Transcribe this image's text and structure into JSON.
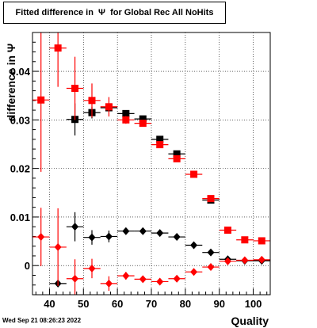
{
  "title": "Fitted difference in  Ψ  for Global Rec All NoHits",
  "footer": "Wed Sep 21 08:26:23 2022",
  "chart_data": {
    "type": "scatter",
    "title": "Fitted difference in  Ψ  for Global Rec All NoHits",
    "xlabel": "Quality",
    "ylabel": "difference in  Ψ",
    "xlim": [
      35,
      105
    ],
    "ylim": [
      -0.006,
      0.048
    ],
    "xticks": [
      40,
      50,
      60,
      70,
      80,
      90,
      100
    ],
    "yticks": [
      0,
      0.01,
      0.02,
      0.03,
      0.04
    ],
    "ytick_labels": [
      "0",
      "0.01",
      "0.02",
      "0.03",
      "0.04"
    ],
    "grid": true,
    "x_half_width": 2.5,
    "series": [
      {
        "color": "#000000",
        "marker": "square",
        "points": [
          {
            "x": 47.5,
            "y": 0.0301,
            "err": 0.0033
          },
          {
            "x": 52.5,
            "y": 0.0315,
            "err": 0.0012
          },
          {
            "x": 57.5,
            "y": 0.0325,
            "err": 0.0006
          },
          {
            "x": 62.5,
            "y": 0.0313,
            "err": 0.0004
          },
          {
            "x": 67.5,
            "y": 0.0302,
            "err": 0.0003
          },
          {
            "x": 72.5,
            "y": 0.026,
            "err": 0.0002
          },
          {
            "x": 77.5,
            "y": 0.023,
            "err": 0.0002
          },
          {
            "x": 87.5,
            "y": 0.0135,
            "err": 0.0002
          }
        ]
      },
      {
        "color": "#ff0000",
        "marker": "square",
        "points": [
          {
            "x": 37.5,
            "y": 0.0341,
            "err": 0.0148
          },
          {
            "x": 42.5,
            "y": 0.0448,
            "err": 0.008
          },
          {
            "x": 47.5,
            "y": 0.0365,
            "err": 0.0065
          },
          {
            "x": 52.5,
            "y": 0.034,
            "err": 0.0035
          },
          {
            "x": 57.5,
            "y": 0.0327,
            "err": 0.002
          },
          {
            "x": 62.5,
            "y": 0.03,
            "err": 0.0008
          },
          {
            "x": 67.5,
            "y": 0.0293,
            "err": 0.0005
          },
          {
            "x": 72.5,
            "y": 0.0249,
            "err": 0.0004
          },
          {
            "x": 77.5,
            "y": 0.022,
            "err": 0.0003
          },
          {
            "x": 82.5,
            "y": 0.0188,
            "err": 0.0003
          },
          {
            "x": 87.5,
            "y": 0.0138,
            "err": 0.0002
          },
          {
            "x": 92.5,
            "y": 0.0073,
            "err": 0.0002
          },
          {
            "x": 97.5,
            "y": 0.0053,
            "err": 0.0002
          },
          {
            "x": 102.5,
            "y": 0.0051,
            "err": 0.0002
          }
        ]
      },
      {
        "color": "#000000",
        "marker": "diamond",
        "points": [
          {
            "x": 42.5,
            "y": -0.0037,
            "err": 0.0007
          },
          {
            "x": 47.5,
            "y": 0.008,
            "err": 0.003
          },
          {
            "x": 52.5,
            "y": 0.0058,
            "err": 0.0015
          },
          {
            "x": 57.5,
            "y": 0.006,
            "err": 0.0012
          },
          {
            "x": 62.5,
            "y": 0.0071,
            "err": 0.0006
          },
          {
            "x": 67.5,
            "y": 0.0071,
            "err": 0.0004
          },
          {
            "x": 72.5,
            "y": 0.0067,
            "err": 0.0003
          },
          {
            "x": 77.5,
            "y": 0.0059,
            "err": 0.0003
          },
          {
            "x": 82.5,
            "y": 0.0042,
            "err": 0.0002
          },
          {
            "x": 87.5,
            "y": 0.0027,
            "err": 0.0002
          },
          {
            "x": 92.5,
            "y": 0.0013,
            "err": 0.0002
          },
          {
            "x": 97.5,
            "y": 0.001,
            "err": 0.0002
          },
          {
            "x": 102.5,
            "y": 0.001,
            "err": 0.0002
          }
        ]
      },
      {
        "color": "#ff0000",
        "marker": "diamond",
        "points": [
          {
            "x": 37.5,
            "y": 0.0059,
            "err": 0.006
          },
          {
            "x": 42.5,
            "y": 0.0038,
            "err": 0.008
          },
          {
            "x": 47.5,
            "y": -0.0027,
            "err": 0.004
          },
          {
            "x": 52.5,
            "y": -0.0006,
            "err": 0.002
          },
          {
            "x": 57.5,
            "y": -0.0037,
            "err": 0.0015
          },
          {
            "x": 62.5,
            "y": -0.0021,
            "err": 0.0008
          },
          {
            "x": 67.5,
            "y": -0.0028,
            "err": 0.0004
          },
          {
            "x": 72.5,
            "y": -0.0033,
            "err": 0.0003
          },
          {
            "x": 77.5,
            "y": -0.0027,
            "err": 0.0003
          },
          {
            "x": 82.5,
            "y": -0.0013,
            "err": 0.0002
          },
          {
            "x": 87.5,
            "y": -0.0003,
            "err": 0.0002
          },
          {
            "x": 92.5,
            "y": 0.0009,
            "err": 0.0002
          },
          {
            "x": 97.5,
            "y": 0.0011,
            "err": 0.0002
          },
          {
            "x": 102.5,
            "y": 0.0012,
            "err": 0.0002
          }
        ]
      }
    ]
  }
}
